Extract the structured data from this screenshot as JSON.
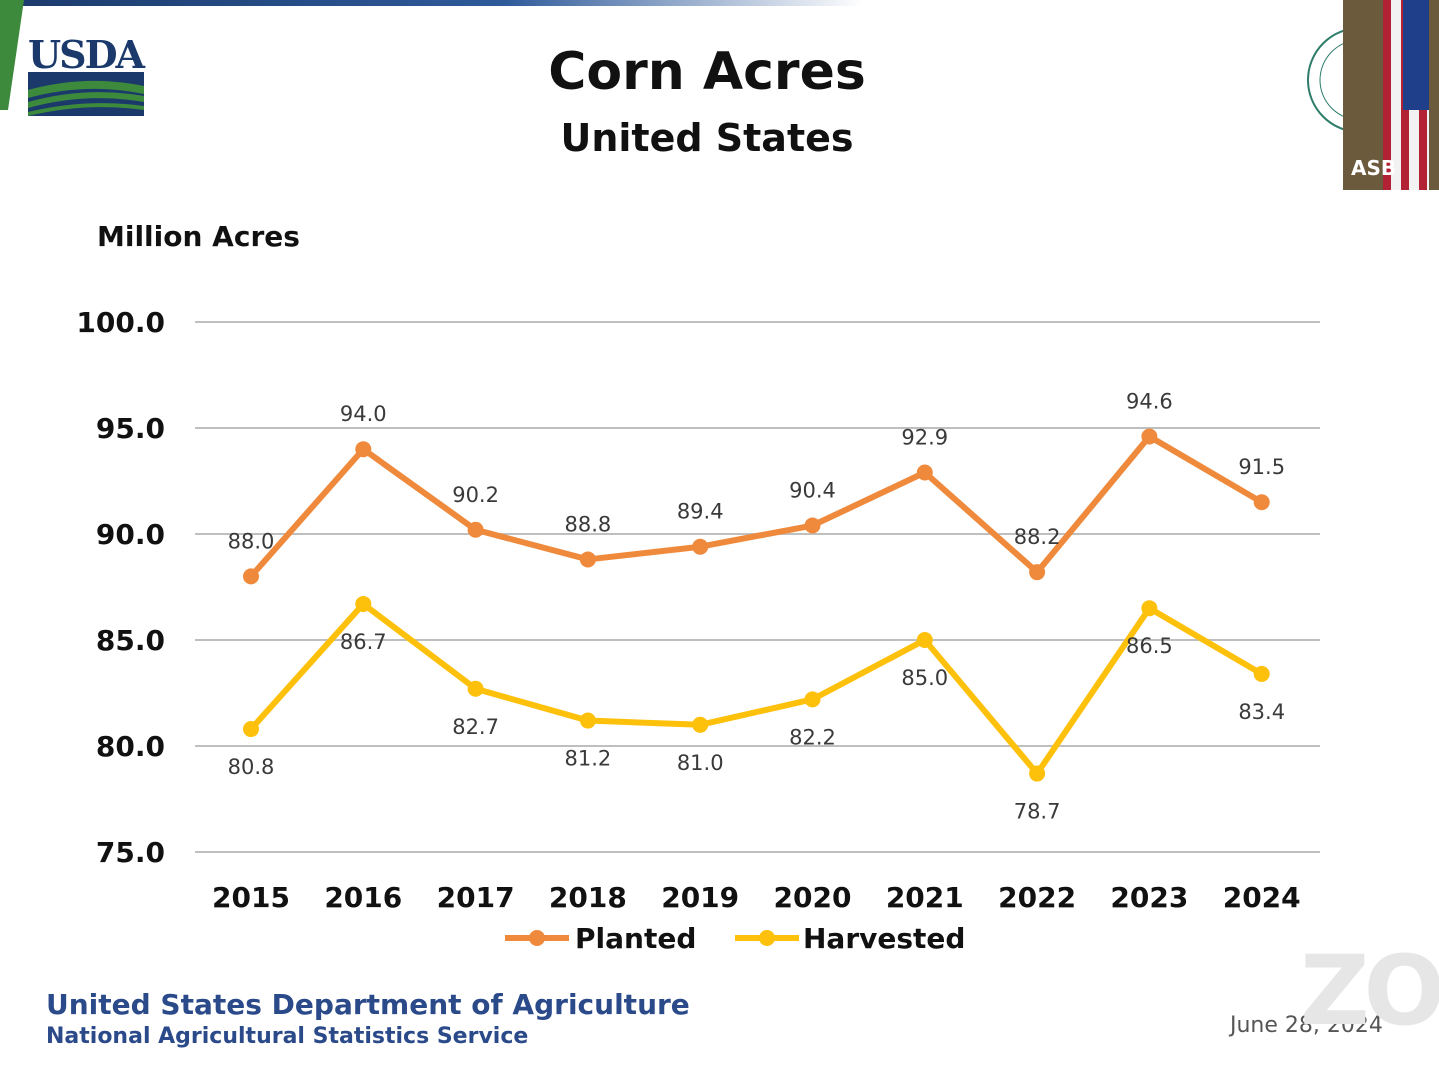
{
  "slide": {
    "title": "Corn Acres",
    "subtitle": "United States",
    "logo_text": "USDA",
    "footer_org": "United States Department of Agriculture",
    "footer_service": "National Agricultural Statistics Service",
    "date": "June 28, 2024",
    "video_tile_label": "ASB",
    "watermark": "ZO"
  },
  "colors": {
    "planted": "#ef8a3c",
    "harvested": "#fdc00b",
    "grid": "#bfbfbf",
    "usda_blue": "#1b3a6b",
    "usda_green": "#3d8a3d"
  },
  "chart_data": {
    "type": "line",
    "title": "Corn Acres",
    "subtitle": "United States",
    "ylabel": "Million Acres",
    "xlabel": "",
    "categories": [
      "2015",
      "2016",
      "2017",
      "2018",
      "2019",
      "2020",
      "2021",
      "2022",
      "2023",
      "2024"
    ],
    "ylim": [
      75.0,
      100.0
    ],
    "yticks": [
      "75.0",
      "80.0",
      "85.0",
      "90.0",
      "95.0",
      "100.0"
    ],
    "grid": true,
    "legend_position": "bottom",
    "series": [
      {
        "name": "Planted",
        "values": [
          88.0,
          94.0,
          90.2,
          88.8,
          89.4,
          90.4,
          92.9,
          88.2,
          94.6,
          91.5
        ],
        "labels": [
          "88.0",
          "94.0",
          "90.2",
          "88.8",
          "89.4",
          "90.4",
          "92.9",
          "88.2",
          "94.6",
          "91.5"
        ]
      },
      {
        "name": "Harvested",
        "values": [
          80.8,
          86.7,
          82.7,
          81.2,
          81.0,
          82.2,
          85.0,
          78.7,
          86.5,
          83.4
        ],
        "labels": [
          "80.8",
          "86.7",
          "82.7",
          "81.2",
          "81.0",
          "82.2",
          "85.0",
          "78.7",
          "86.5",
          "83.4"
        ]
      }
    ]
  }
}
